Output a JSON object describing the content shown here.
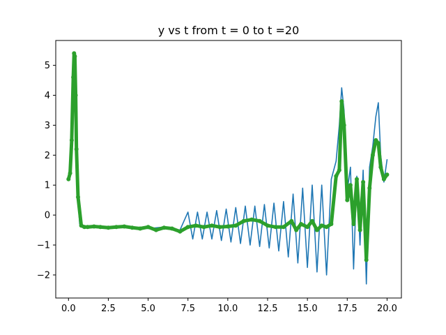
{
  "chart_data": {
    "type": "line",
    "title": "y vs t from t = 0 to t =20",
    "xlabel": "",
    "ylabel": "",
    "xlim": [
      -0.8,
      20.9
    ],
    "ylim": [
      -2.77,
      5.83
    ],
    "xticks": [
      0.0,
      2.5,
      5.0,
      7.5,
      10.0,
      12.5,
      15.0,
      17.5,
      20.0
    ],
    "xtick_labels": [
      "0.0",
      "2.5",
      "5.0",
      "7.5",
      "10.0",
      "12.5",
      "15.0",
      "17.5",
      "20.0"
    ],
    "yticks": [
      -2,
      -1,
      0,
      1,
      2,
      3,
      4,
      5
    ],
    "ytick_labels": [
      "−2",
      "−1",
      "0",
      "1",
      "2",
      "3",
      "4",
      "5"
    ],
    "grid": false,
    "series": [
      {
        "color": "#1f77b4",
        "style": "line",
        "x": [
          0.0,
          0.1,
          0.2,
          0.3,
          0.35,
          0.4,
          0.45,
          0.5,
          0.6,
          0.7,
          0.8,
          0.9,
          1.0,
          1.2,
          2.0,
          3.0,
          4.0,
          5.0,
          6.0,
          7.0,
          7.5,
          7.8,
          8.1,
          8.4,
          8.7,
          9.0,
          9.3,
          9.6,
          9.9,
          10.2,
          10.5,
          10.8,
          11.1,
          11.4,
          11.7,
          12.0,
          12.3,
          12.6,
          12.9,
          13.2,
          13.5,
          13.8,
          14.1,
          14.4,
          14.7,
          15.0,
          15.3,
          15.6,
          15.9,
          16.2,
          16.5,
          16.8,
          17.0,
          17.15,
          17.3,
          17.5,
          17.7,
          17.9,
          18.1,
          18.3,
          18.5,
          18.7,
          18.9,
          19.1,
          19.3,
          19.45,
          19.6,
          19.8,
          20.0
        ],
        "y": [
          1.2,
          1.4,
          2.5,
          4.6,
          5.4,
          5.3,
          4.0,
          2.2,
          0.5,
          -0.3,
          -0.35,
          -0.4,
          -0.4,
          -0.4,
          -0.38,
          -0.42,
          -0.4,
          -0.45,
          -0.4,
          -0.5,
          0.1,
          -0.8,
          0.1,
          -0.8,
          0.1,
          -0.8,
          0.15,
          -0.85,
          0.2,
          -0.9,
          0.25,
          -0.95,
          0.3,
          -1.0,
          0.3,
          -1.05,
          0.35,
          -1.1,
          0.4,
          -1.2,
          0.45,
          -1.4,
          0.7,
          -1.6,
          0.9,
          -1.75,
          1.0,
          -1.9,
          1.0,
          -2.0,
          1.2,
          1.8,
          3.0,
          4.25,
          3.5,
          0.8,
          1.6,
          -1.8,
          1.3,
          -1.0,
          1.5,
          -2.3,
          1.6,
          2.3,
          3.3,
          3.75,
          2.0,
          1.1,
          1.85
        ]
      },
      {
        "color": "#2ca02c",
        "style": "marker",
        "x": [
          0.0,
          0.1,
          0.2,
          0.3,
          0.35,
          0.4,
          0.45,
          0.5,
          0.6,
          0.8,
          1.0,
          1.2,
          1.6,
          2.0,
          2.5,
          3.0,
          3.5,
          4.0,
          4.5,
          5.0,
          5.5,
          6.0,
          6.5,
          7.0,
          7.5,
          8.0,
          8.5,
          9.0,
          9.5,
          10.0,
          10.5,
          11.0,
          11.5,
          12.0,
          12.5,
          13.0,
          13.5,
          14.0,
          14.3,
          14.6,
          15.0,
          15.3,
          15.6,
          15.9,
          16.2,
          16.5,
          16.8,
          17.0,
          17.15,
          17.3,
          17.5,
          17.7,
          17.9,
          18.1,
          18.3,
          18.5,
          18.7,
          18.9,
          19.1,
          19.3,
          19.45,
          19.6,
          19.8,
          20.0
        ],
        "y": [
          1.2,
          1.4,
          2.5,
          4.6,
          5.4,
          5.3,
          4.0,
          2.2,
          0.6,
          -0.35,
          -0.4,
          -0.4,
          -0.38,
          -0.4,
          -0.42,
          -0.4,
          -0.38,
          -0.42,
          -0.45,
          -0.4,
          -0.5,
          -0.42,
          -0.45,
          -0.55,
          -0.4,
          -0.35,
          -0.4,
          -0.35,
          -0.4,
          -0.38,
          -0.35,
          -0.2,
          -0.15,
          -0.2,
          -0.35,
          -0.4,
          -0.4,
          -0.2,
          -0.5,
          -0.3,
          -0.4,
          -0.2,
          -0.5,
          -0.35,
          -0.4,
          -0.3,
          1.3,
          1.5,
          3.8,
          3.0,
          0.5,
          1.0,
          -0.3,
          1.2,
          -0.5,
          1.1,
          -1.5,
          0.9,
          2.0,
          2.5,
          2.4,
          1.6,
          1.2,
          1.35
        ]
      }
    ]
  }
}
